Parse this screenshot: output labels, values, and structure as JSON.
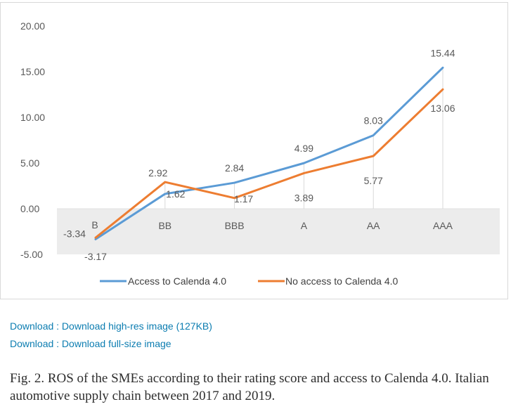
{
  "chart_data": {
    "type": "line",
    "categories": [
      "B",
      "BB",
      "BBB",
      "A",
      "AA",
      "AAA"
    ],
    "series": [
      {
        "name": "Access to Calenda 4.0",
        "color": "#5b9bd5",
        "values": [
          -3.34,
          1.62,
          2.84,
          4.99,
          8.03,
          15.44
        ]
      },
      {
        "name": "No access to Calenda 4.0",
        "color": "#ed7d31",
        "values": [
          -3.17,
          2.92,
          1.17,
          3.89,
          5.77,
          13.06
        ]
      }
    ],
    "yticks": [
      "20.00",
      "15.00",
      "10.00",
      "5.00",
      "0.00",
      "-5.00"
    ],
    "ylim": [
      -5,
      20
    ],
    "data_labels": {
      "access": [
        "-3.34",
        "1.62",
        "2.84",
        "4.99",
        "8.03",
        "15.44"
      ],
      "no_access": [
        "-3.17",
        "2.92",
        "1.17",
        "3.89",
        "5.77",
        "13.06"
      ]
    },
    "legend_position": "bottom",
    "title": "",
    "xlabel": "",
    "ylabel": ""
  },
  "links": {
    "high_res": "Download : Download high-res image (127KB)",
    "full_size": "Download : Download full-size image"
  },
  "caption": "Fig. 2. ROS of the SMEs according to their rating score and access to Calenda 4.0. Italian automotive supply chain between 2017 and 2019."
}
